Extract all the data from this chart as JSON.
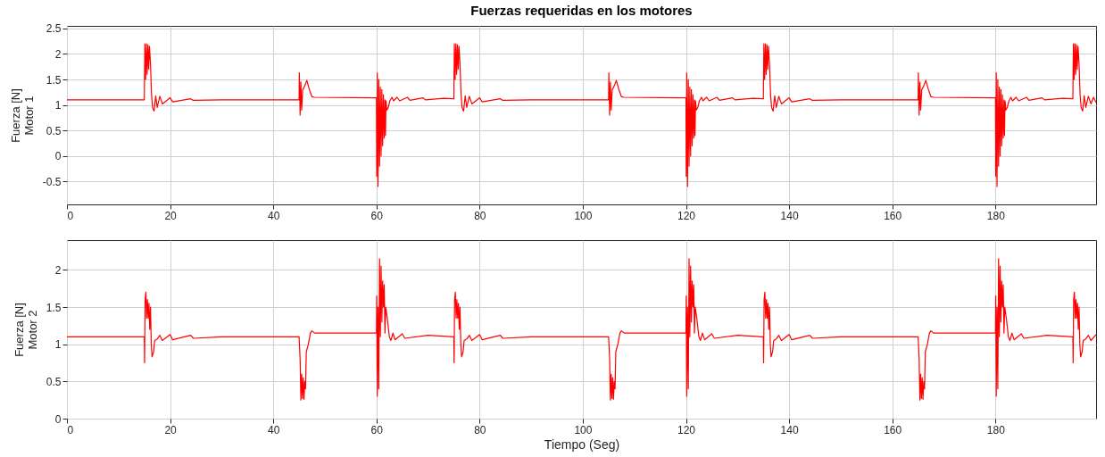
{
  "chart_data": [
    {
      "type": "line",
      "title": "Fuerzas requeridas en los motores",
      "ylabel": "Fuerza  [N]\nMotor 1",
      "xlim": [
        0,
        199.5
      ],
      "xticks": [
        0,
        20,
        40,
        60,
        80,
        100,
        120,
        140,
        160,
        180
      ],
      "ylim": [
        -0.95,
        2.55
      ],
      "yticks": [
        -0.5,
        0,
        0.5,
        1,
        1.5,
        2,
        2.5
      ],
      "grid": true,
      "line_style": "solid",
      "x": [
        0,
        15,
        15.1,
        15.25,
        15.4,
        15.55,
        15.7,
        15.85,
        16,
        16.2,
        16.4,
        16.6,
        16.9,
        17.2,
        17.5,
        18,
        18.5,
        20,
        20.5,
        24,
        24.5,
        30,
        45,
        45.05,
        45.2,
        45.35,
        45.5,
        45.7,
        46,
        46.5,
        47,
        47.5,
        48,
        60,
        60.05,
        60.15,
        60.3,
        60.45,
        60.6,
        60.75,
        60.9,
        61.05,
        61.2,
        61.35,
        61.5,
        61.65,
        61.75,
        61.85,
        62,
        62.3,
        62.6,
        63,
        63.3,
        64,
        64.5,
        66,
        66.5,
        69,
        69.5,
        73,
        75,
        75.1,
        75.25,
        75.4,
        75.55,
        75.7,
        75.85,
        76,
        76.2,
        76.4,
        76.6,
        76.9,
        77.2,
        77.5,
        78,
        78.5,
        80,
        80.5,
        84,
        84.5,
        90,
        105,
        105.05,
        105.2,
        105.35,
        105.5,
        105.7,
        106,
        106.5,
        107,
        107.5,
        108,
        120,
        120.05,
        120.15,
        120.3,
        120.45,
        120.6,
        120.75,
        120.9,
        121.05,
        121.2,
        121.35,
        121.5,
        121.65,
        121.75,
        121.85,
        122,
        122.3,
        122.6,
        123,
        123.3,
        124,
        124.5,
        126,
        126.5,
        129,
        129.5,
        133,
        135,
        135.1,
        135.25,
        135.4,
        135.55,
        135.7,
        135.85,
        136,
        136.2,
        136.4,
        136.6,
        136.9,
        137.2,
        137.5,
        138,
        138.5,
        140,
        140.5,
        144,
        144.5,
        150,
        165,
        165.05,
        165.2,
        165.35,
        165.5,
        165.7,
        166,
        166.5,
        167,
        167.5,
        168,
        180,
        180.05,
        180.15,
        180.3,
        180.45,
        180.6,
        180.75,
        180.9,
        181.05,
        181.2,
        181.35,
        181.5,
        181.65,
        181.75,
        181.85,
        182,
        182.3,
        182.6,
        183,
        183.3,
        184,
        184.5,
        186,
        186.5,
        189,
        189.5,
        193,
        195,
        195.1,
        195.25,
        195.4,
        195.55,
        195.7,
        195.85,
        196,
        196.2,
        196.4,
        196.6,
        196.9,
        197.2,
        197.5,
        198,
        198.5,
        199,
        199.5
      ],
      "series": [
        {
          "color": "#ff0000",
          "values": [
            1.1,
            1.1,
            2.2,
            1.5,
            2.2,
            1.6,
            2.18,
            1.7,
            2.15,
            1.8,
            1.2,
            0.95,
            0.88,
            1.18,
            0.95,
            1.17,
            1.02,
            1.14,
            1.06,
            1.12,
            1.09,
            1.1,
            1.1,
            1.63,
            0.8,
            1.45,
            0.9,
            1.3,
            1.35,
            1.48,
            1.3,
            1.16,
            1.15,
            1.14,
            -0.4,
            1.63,
            -0.6,
            1.5,
            -0.2,
            1.35,
            0,
            1.3,
            0.2,
            1.2,
            0.35,
            1.1,
            0.4,
            1.08,
            0.9,
            0.95,
            1.08,
            1.15,
            1.08,
            1.15,
            1.08,
            1.15,
            1.09,
            1.14,
            1.1,
            1.13,
            1.12,
            2.2,
            1.5,
            2.2,
            1.6,
            2.18,
            1.7,
            2.15,
            1.8,
            1.2,
            0.95,
            0.88,
            1.18,
            0.95,
            1.17,
            1.02,
            1.14,
            1.06,
            1.12,
            1.09,
            1.1,
            1.1,
            1.63,
            0.8,
            1.45,
            0.9,
            1.3,
            1.35,
            1.48,
            1.3,
            1.16,
            1.15,
            1.14,
            -0.4,
            1.63,
            -0.6,
            1.5,
            -0.2,
            1.35,
            0,
            1.3,
            0.2,
            1.2,
            0.35,
            1.1,
            0.4,
            1.08,
            0.9,
            0.95,
            1.08,
            1.15,
            1.08,
            1.15,
            1.08,
            1.15,
            1.09,
            1.14,
            1.1,
            1.13,
            1.12,
            2.2,
            1.5,
            2.2,
            1.6,
            2.18,
            1.7,
            2.15,
            1.8,
            1.2,
            0.95,
            0.88,
            1.18,
            0.95,
            1.17,
            1.02,
            1.14,
            1.06,
            1.12,
            1.09,
            1.1,
            1.1,
            1.63,
            0.8,
            1.45,
            0.9,
            1.3,
            1.35,
            1.48,
            1.3,
            1.16,
            1.15,
            1.14,
            -0.4,
            1.63,
            -0.6,
            1.5,
            -0.2,
            1.35,
            0,
            1.3,
            0.2,
            1.2,
            0.35,
            1.1,
            0.4,
            1.08,
            0.9,
            0.95,
            1.08,
            1.15,
            1.08,
            1.15,
            1.08,
            1.15,
            1.09,
            1.14,
            1.1,
            1.13,
            1.12,
            2.2,
            1.5,
            2.2,
            1.6,
            2.18,
            1.7,
            2.15,
            1.8,
            1.2,
            0.95,
            0.88,
            1.18,
            0.95,
            1.17,
            1.02,
            1.15,
            1.05
          ]
        }
      ]
    },
    {
      "type": "line",
      "xlabel": "Tiempo (Seg)",
      "ylabel": "Fuerza  [N]\nMotor 2",
      "xlim": [
        0,
        199.5
      ],
      "xticks": [
        0,
        20,
        40,
        60,
        80,
        100,
        120,
        140,
        160,
        180
      ],
      "ylim": [
        0,
        2.4
      ],
      "yticks": [
        0,
        0.5,
        1,
        1.5,
        2
      ],
      "grid": true,
      "line_style": "solid",
      "x": [
        0,
        15,
        15.05,
        15.15,
        15.3,
        15.45,
        15.6,
        15.75,
        15.9,
        16.05,
        16.2,
        16.35,
        16.5,
        16.8,
        17,
        17.5,
        18,
        18.5,
        20,
        20.5,
        24,
        24.5,
        30,
        45,
        45.2,
        45.35,
        45.5,
        45.65,
        45.8,
        45.95,
        46.1,
        46.25,
        46.4,
        46.8,
        47.2,
        47.5,
        48,
        60,
        60.05,
        60.15,
        60.3,
        60.45,
        60.6,
        60.75,
        60.9,
        61.05,
        61.2,
        61.35,
        61.5,
        61.65,
        61.8,
        62.1,
        62.5,
        62.8,
        63.2,
        63.6,
        65,
        65.5,
        70,
        75,
        75.05,
        75.15,
        75.3,
        75.45,
        75.6,
        75.75,
        75.9,
        76.05,
        76.2,
        76.35,
        76.5,
        76.8,
        77,
        77.5,
        78,
        78.5,
        80,
        80.5,
        84,
        84.5,
        90,
        105,
        105.2,
        105.35,
        105.5,
        105.65,
        105.8,
        105.95,
        106.1,
        106.25,
        106.4,
        106.8,
        107.2,
        107.5,
        108,
        120,
        120.05,
        120.15,
        120.3,
        120.45,
        120.6,
        120.75,
        120.9,
        121.05,
        121.2,
        121.35,
        121.5,
        121.65,
        121.8,
        122.1,
        122.5,
        122.8,
        123.2,
        123.6,
        125,
        125.5,
        130,
        135,
        135.05,
        135.15,
        135.3,
        135.45,
        135.6,
        135.75,
        135.9,
        136.05,
        136.2,
        136.35,
        136.5,
        136.8,
        137,
        137.5,
        138,
        138.5,
        140,
        140.5,
        144,
        144.5,
        150,
        165,
        165.2,
        165.35,
        165.5,
        165.65,
        165.8,
        165.95,
        166.1,
        166.25,
        166.4,
        166.8,
        167.2,
        167.5,
        168,
        180,
        180.05,
        180.15,
        180.3,
        180.45,
        180.6,
        180.75,
        180.9,
        181.05,
        181.2,
        181.35,
        181.5,
        181.65,
        181.8,
        182.1,
        182.5,
        182.8,
        183.2,
        183.6,
        185,
        185.5,
        190,
        195,
        195.05,
        195.15,
        195.3,
        195.45,
        195.6,
        195.75,
        195.9,
        196.05,
        196.2,
        196.35,
        196.5,
        196.8,
        197,
        197.5,
        198,
        198.5,
        199.5
      ],
      "series": [
        {
          "color": "#ff0000",
          "values": [
            1.1,
            1.1,
            0.75,
            1.6,
            1.7,
            1.35,
            1.6,
            1.35,
            1.55,
            1.2,
            1.5,
            1,
            0.83,
            0.9,
            1.05,
            1.07,
            1.12,
            1.05,
            1.13,
            1.06,
            1.12,
            1.08,
            1.1,
            1.1,
            0.8,
            0.25,
            0.6,
            0.27,
            0.55,
            0.26,
            0.5,
            0.4,
            0.9,
            1,
            1.15,
            1.18,
            1.15,
            1.15,
            1.65,
            0.3,
            1.5,
            0.4,
            2.15,
            1.1,
            2.05,
            1.3,
            1.85,
            1.5,
            1.8,
            1.15,
            1.5,
            1.35,
            1.1,
            1.05,
            1.15,
            1.06,
            1.14,
            1.08,
            1.12,
            1.1,
            0.75,
            1.6,
            1.7,
            1.35,
            1.6,
            1.35,
            1.55,
            1.2,
            1.5,
            1,
            0.83,
            0.9,
            1.05,
            1.07,
            1.12,
            1.05,
            1.13,
            1.06,
            1.12,
            1.08,
            1.1,
            1.1,
            0.8,
            0.25,
            0.6,
            0.27,
            0.55,
            0.26,
            0.5,
            0.4,
            0.9,
            1,
            1.15,
            1.18,
            1.15,
            1.15,
            1.65,
            0.3,
            1.5,
            0.4,
            2.15,
            1.1,
            2.05,
            1.3,
            1.85,
            1.5,
            1.8,
            1.15,
            1.5,
            1.35,
            1.1,
            1.05,
            1.15,
            1.06,
            1.14,
            1.08,
            1.12,
            1.1,
            0.75,
            1.6,
            1.7,
            1.35,
            1.6,
            1.35,
            1.55,
            1.2,
            1.5,
            1,
            0.83,
            0.9,
            1.05,
            1.07,
            1.12,
            1.05,
            1.13,
            1.06,
            1.12,
            1.08,
            1.1,
            1.1,
            0.8,
            0.25,
            0.6,
            0.27,
            0.55,
            0.26,
            0.5,
            0.4,
            0.9,
            1,
            1.15,
            1.18,
            1.15,
            1.15,
            1.65,
            0.3,
            1.5,
            0.4,
            2.15,
            1.1,
            2.05,
            1.3,
            1.85,
            1.5,
            1.8,
            1.15,
            1.5,
            1.35,
            1.1,
            1.05,
            1.15,
            1.06,
            1.14,
            1.08,
            1.12,
            1.1,
            0.75,
            1.6,
            1.7,
            1.35,
            1.6,
            1.35,
            1.55,
            1.2,
            1.5,
            1,
            0.83,
            0.9,
            1.05,
            1.07,
            1.12,
            1.05,
            1.13
          ]
        }
      ]
    }
  ]
}
